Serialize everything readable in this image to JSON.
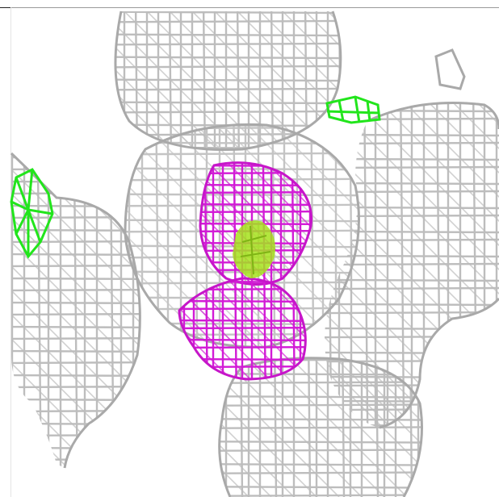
{
  "viewer": {
    "style": "electron-density-mesh",
    "background_color": "#ffffff",
    "mesh_colors": {
      "density": "#bdbdbd",
      "positive_difference": "#22e51c",
      "negative_difference": "#d21bd6",
      "ligand_core": "#a6e21c"
    },
    "mesh_regions": [
      {
        "name": "density-upper-lobe",
        "color_key": "density"
      },
      {
        "name": "density-left-lobe",
        "color_key": "density"
      },
      {
        "name": "density-central-lobe",
        "color_key": "density"
      },
      {
        "name": "density-right-lobe",
        "color_key": "density"
      },
      {
        "name": "density-lower-lobe",
        "color_key": "density"
      },
      {
        "name": "positive-difference-left",
        "color_key": "positive_difference"
      },
      {
        "name": "positive-difference-top-right",
        "color_key": "positive_difference"
      },
      {
        "name": "negative-difference-upper",
        "color_key": "negative_difference"
      },
      {
        "name": "negative-difference-lower",
        "color_key": "negative_difference"
      },
      {
        "name": "ligand-core-blob",
        "color_key": "ligand_core"
      }
    ]
  }
}
